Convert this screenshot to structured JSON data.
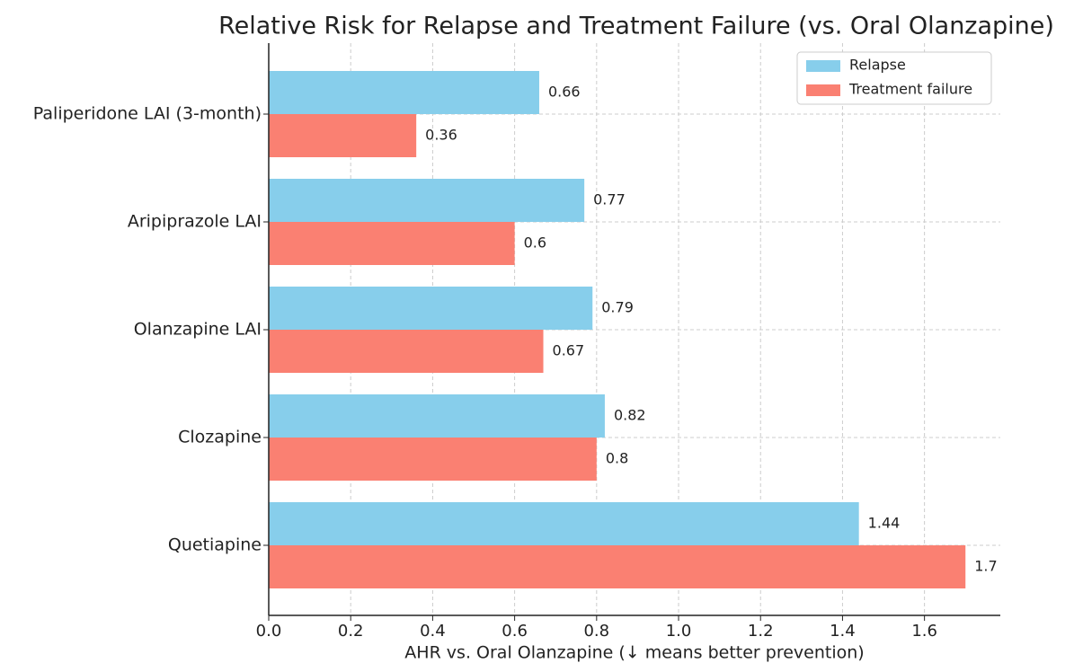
{
  "chart_data": {
    "type": "barh",
    "title": "Relative Risk for Relapse and Treatment Failure (vs. Oral Olanzapine)",
    "x_label": "AHR vs. Oral Olanzapine (↓ means better prevention)",
    "categories": [
      "Paliperidone LAI (3-month)",
      "Aripiprazole LAI",
      "Olanzapine LAI",
      "Clozapine",
      "Quetiapine"
    ],
    "series": [
      {
        "name": "Relapse",
        "color": "#87ceeb",
        "values": [
          0.66,
          0.77,
          0.79,
          0.82,
          1.44
        ]
      },
      {
        "name": "Treatment failure",
        "color": "#fa8072",
        "values": [
          0.36,
          0.6,
          0.67,
          0.8,
          1.7
        ]
      }
    ],
    "xlim": [
      0,
      1.785
    ],
    "xticks": [
      {
        "value": 0,
        "label": "0.0"
      },
      0.2,
      0.4,
      0.6,
      0.8,
      {
        "value": 1,
        "label": "1.0"
      },
      1.2,
      1.4,
      1.6
    ],
    "grid": true,
    "legend": "upper right"
  }
}
